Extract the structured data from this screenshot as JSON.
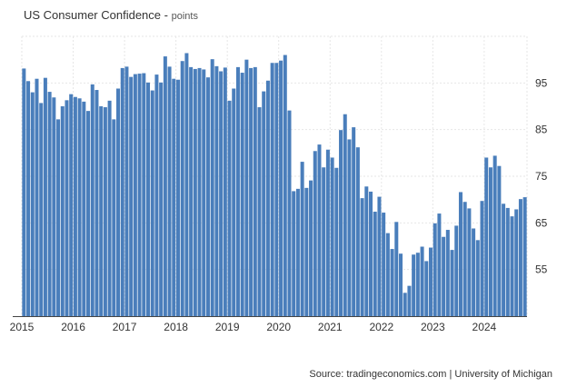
{
  "title": "US Consumer Confidence",
  "subtitle": "points",
  "source": "Source: tradingeconomics.com | University of Michigan",
  "chart_data": {
    "type": "bar",
    "title": "US Consumer Confidence",
    "subtitle": "points",
    "xlabel": "",
    "ylabel": "",
    "ylim": [
      45,
      105
    ],
    "y_ticks": [
      55,
      65,
      75,
      85,
      95
    ],
    "x_ticks": [
      "2015",
      "2016",
      "2017",
      "2018",
      "2019",
      "2020",
      "2021",
      "2022",
      "2023",
      "2024"
    ],
    "grid": true,
    "bar_color": "#4a7ebb",
    "start": "2015-01",
    "end": "2024-10",
    "categories": [
      "2015-01",
      "2015-02",
      "2015-03",
      "2015-04",
      "2015-05",
      "2015-06",
      "2015-07",
      "2015-08",
      "2015-09",
      "2015-10",
      "2015-11",
      "2015-12",
      "2016-01",
      "2016-02",
      "2016-03",
      "2016-04",
      "2016-05",
      "2016-06",
      "2016-07",
      "2016-08",
      "2016-09",
      "2016-10",
      "2016-11",
      "2016-12",
      "2017-01",
      "2017-02",
      "2017-03",
      "2017-04",
      "2017-05",
      "2017-06",
      "2017-07",
      "2017-08",
      "2017-09",
      "2017-10",
      "2017-11",
      "2017-12",
      "2018-01",
      "2018-02",
      "2018-03",
      "2018-04",
      "2018-05",
      "2018-06",
      "2018-07",
      "2018-08",
      "2018-09",
      "2018-10",
      "2018-11",
      "2018-12",
      "2019-01",
      "2019-02",
      "2019-03",
      "2019-04",
      "2019-05",
      "2019-06",
      "2019-07",
      "2019-08",
      "2019-09",
      "2019-10",
      "2019-11",
      "2019-12",
      "2020-01",
      "2020-02",
      "2020-03",
      "2020-04",
      "2020-05",
      "2020-06",
      "2020-07",
      "2020-08",
      "2020-09",
      "2020-10",
      "2020-11",
      "2020-12",
      "2021-01",
      "2021-02",
      "2021-03",
      "2021-04",
      "2021-05",
      "2021-06",
      "2021-07",
      "2021-08",
      "2021-09",
      "2021-10",
      "2021-11",
      "2021-12",
      "2022-01",
      "2022-02",
      "2022-03",
      "2022-04",
      "2022-05",
      "2022-06",
      "2022-07",
      "2022-08",
      "2022-09",
      "2022-10",
      "2022-11",
      "2022-12",
      "2023-01",
      "2023-02",
      "2023-03",
      "2023-04",
      "2023-05",
      "2023-06",
      "2023-07",
      "2023-08",
      "2023-09",
      "2023-10",
      "2023-11",
      "2023-12",
      "2024-01",
      "2024-02",
      "2024-03",
      "2024-04",
      "2024-05",
      "2024-06",
      "2024-07",
      "2024-08",
      "2024-09",
      "2024-10"
    ],
    "values": [
      98.1,
      95.4,
      93.0,
      95.9,
      90.7,
      96.1,
      93.1,
      91.9,
      87.2,
      90.0,
      91.3,
      92.6,
      92.0,
      91.7,
      91.0,
      89.0,
      94.7,
      93.5,
      90.0,
      89.8,
      91.2,
      87.2,
      93.8,
      98.2,
      98.5,
      96.3,
      96.9,
      97.0,
      97.1,
      95.1,
      93.4,
      96.8,
      95.1,
      100.7,
      98.5,
      95.9,
      95.7,
      99.7,
      101.4,
      98.4,
      98.0,
      98.2,
      97.9,
      96.2,
      100.1,
      98.6,
      97.5,
      98.3,
      91.2,
      93.8,
      98.4,
      97.2,
      100.0,
      98.2,
      98.4,
      89.8,
      93.2,
      95.5,
      99.3,
      99.3,
      99.8,
      101.0,
      89.1,
      71.8,
      72.3,
      78.1,
      72.5,
      74.1,
      80.4,
      81.8,
      76.9,
      80.7,
      79.0,
      76.8,
      84.9,
      88.3,
      82.9,
      85.5,
      81.2,
      70.3,
      72.8,
      71.7,
      67.4,
      70.6,
      67.2,
      62.8,
      59.4,
      65.2,
      58.4,
      50.0,
      51.5,
      58.2,
      58.6,
      59.9,
      56.8,
      59.7,
      64.9,
      67.0,
      62.0,
      63.5,
      59.2,
      64.4,
      71.6,
      69.5,
      68.1,
      63.8,
      61.3,
      69.7,
      79.0,
      76.9,
      79.4,
      77.2,
      69.1,
      68.2,
      66.4,
      67.9,
      70.1,
      70.5
    ]
  }
}
